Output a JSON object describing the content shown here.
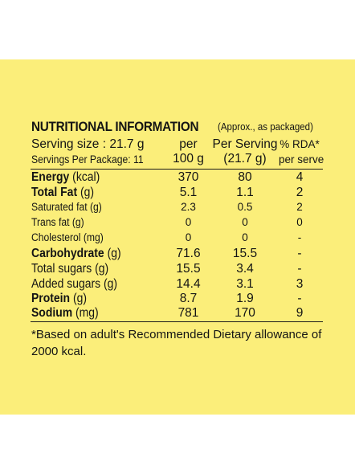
{
  "heading": {
    "title": "NUTRITIONAL INFORMATION",
    "note": "(Approx., as packaged)"
  },
  "header_rows": [
    {
      "name": "Serving size : 21.7 g",
      "per": "per",
      "serving": "Per Serving",
      "rda": "% RDA*"
    },
    {
      "name": "Servings Per Package: 11",
      "per": "100 g",
      "serving": "(21.7 g)",
      "rda": "per serve"
    }
  ],
  "rows": [
    {
      "name": "Energy",
      "unit": " (kcal)",
      "per": "370",
      "serving": "80",
      "rda": "4",
      "bold": true,
      "size": "big"
    },
    {
      "name": "Total Fat",
      "unit": " (g)",
      "per": "5.1",
      "serving": "1.1",
      "rda": "2",
      "bold": true,
      "size": "big"
    },
    {
      "name": "Saturated fat (g)",
      "unit": "",
      "per": "2.3",
      "serving": "0.5",
      "rda": "2",
      "bold": false,
      "size": "small"
    },
    {
      "name": "Trans fat (g)",
      "unit": "",
      "per": "0",
      "serving": "0",
      "rda": "0",
      "bold": false,
      "size": "small"
    },
    {
      "name": "Cholesterol (mg)",
      "unit": "",
      "per": "0",
      "serving": "0",
      "rda": "-",
      "bold": false,
      "size": "small"
    },
    {
      "name": "Carbohydrate",
      "unit": " (g)",
      "per": "71.6",
      "serving": "15.5",
      "rda": "-",
      "bold": true,
      "size": "big"
    },
    {
      "name": "Total sugars (g)",
      "unit": "",
      "per": "15.5",
      "serving": "3.4",
      "rda": "-",
      "bold": false,
      "size": "big"
    },
    {
      "name": "Added sugars (g)",
      "unit": "",
      "per": "14.4",
      "serving": "3.1",
      "rda": "3",
      "bold": false,
      "size": "big"
    },
    {
      "name": "Protein",
      "unit": " (g)",
      "per": "8.7",
      "serving": "1.9",
      "rda": "-",
      "bold": true,
      "size": "big"
    },
    {
      "name": "Sodium",
      "unit": " (mg)",
      "per": "781",
      "serving": "170",
      "rda": "9",
      "bold": true,
      "size": "big"
    }
  ],
  "footnote": "*Based on adult's Recommended Dietary allowance of 2000 kcal.",
  "colors": {
    "panel": "#fbee7a",
    "text": "#141414"
  }
}
